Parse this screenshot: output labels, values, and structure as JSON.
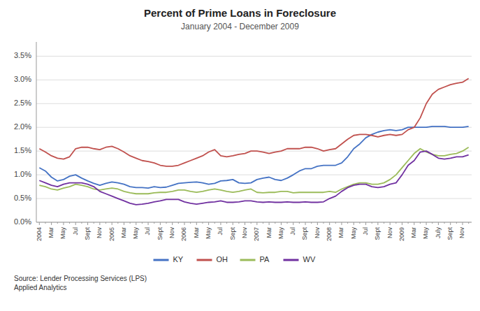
{
  "chart_data": {
    "type": "line",
    "title": "Percent of Prime Loans in Foreclosure",
    "subtitle": "January 2004 - December 2009",
    "annotations": [
      "Source: Lender Processing Services (LPS)\nApplied Analytics"
    ],
    "categories": [
      "2004",
      null,
      "Mar",
      null,
      "May",
      null,
      "Jul",
      null,
      "Sept",
      null,
      "Nov",
      null,
      "2005",
      null,
      "Mar",
      null,
      "May",
      null,
      "Jul",
      null,
      "Sept",
      null,
      "Nov",
      null,
      "2006",
      null,
      "Mar",
      null,
      "May",
      null,
      "Jul",
      null,
      "Sept",
      null,
      "Nov",
      null,
      "2007",
      null,
      "Mar",
      null,
      "May",
      null,
      "Jul",
      null,
      "Sept",
      null,
      "Nov",
      null,
      "2008",
      null,
      "Mar",
      null,
      "May",
      null,
      "Jul",
      null,
      "Sept",
      null,
      "Nov",
      null,
      "2009",
      null,
      "Mar",
      null,
      "May",
      null,
      "July",
      null,
      "Sept",
      null,
      "Nov",
      null
    ],
    "series": [
      {
        "name": "KY",
        "color": "#4472C4",
        "values": [
          0.0115,
          0.0108,
          0.0095,
          0.0087,
          0.009,
          0.0097,
          0.01,
          0.0093,
          0.0087,
          0.0082,
          0.0078,
          0.0082,
          0.0085,
          0.0083,
          0.008,
          0.0075,
          0.0073,
          0.0073,
          0.0072,
          0.0075,
          0.0073,
          0.0074,
          0.0078,
          0.0082,
          0.0083,
          0.0084,
          0.0085,
          0.0083,
          0.008,
          0.0082,
          0.0087,
          0.0088,
          0.009,
          0.0083,
          0.0082,
          0.0083,
          0.009,
          0.0093,
          0.0095,
          0.009,
          0.0088,
          0.0093,
          0.01,
          0.0108,
          0.0113,
          0.0113,
          0.0118,
          0.012,
          0.012,
          0.012,
          0.0125,
          0.0138,
          0.0155,
          0.0165,
          0.0178,
          0.0185,
          0.019,
          0.0193,
          0.0195,
          0.0193,
          0.0195,
          0.02,
          0.02,
          0.02,
          0.02,
          0.0202,
          0.0202,
          0.0202,
          0.02,
          0.02,
          0.02,
          0.0202
        ]
      },
      {
        "name": "OH",
        "color": "#C0504D",
        "values": [
          0.0155,
          0.0148,
          0.014,
          0.0135,
          0.0133,
          0.0138,
          0.0155,
          0.0158,
          0.0158,
          0.0155,
          0.0153,
          0.0158,
          0.016,
          0.0155,
          0.0148,
          0.014,
          0.0135,
          0.013,
          0.0128,
          0.0125,
          0.012,
          0.0118,
          0.0118,
          0.012,
          0.0125,
          0.013,
          0.0135,
          0.014,
          0.0148,
          0.0153,
          0.014,
          0.0138,
          0.014,
          0.0143,
          0.0145,
          0.015,
          0.015,
          0.0148,
          0.0145,
          0.0148,
          0.015,
          0.0155,
          0.0155,
          0.0155,
          0.0158,
          0.0158,
          0.0155,
          0.015,
          0.0153,
          0.0155,
          0.0165,
          0.0175,
          0.0183,
          0.0185,
          0.0185,
          0.0183,
          0.018,
          0.0183,
          0.0185,
          0.0183,
          0.0185,
          0.0195,
          0.02,
          0.022,
          0.025,
          0.027,
          0.028,
          0.0285,
          0.029,
          0.0293,
          0.0295,
          0.0303
        ]
      },
      {
        "name": "PA",
        "color": "#9BBB59",
        "values": [
          0.0078,
          0.0075,
          0.007,
          0.0068,
          0.0072,
          0.0075,
          0.008,
          0.0078,
          0.0075,
          0.007,
          0.0068,
          0.007,
          0.0072,
          0.007,
          0.0065,
          0.0062,
          0.006,
          0.006,
          0.006,
          0.0062,
          0.0063,
          0.0063,
          0.0065,
          0.0068,
          0.0068,
          0.0065,
          0.0063,
          0.0065,
          0.0068,
          0.007,
          0.0068,
          0.0065,
          0.0063,
          0.0065,
          0.0068,
          0.007,
          0.0063,
          0.0062,
          0.0063,
          0.0063,
          0.0065,
          0.0065,
          0.0062,
          0.0063,
          0.0063,
          0.0063,
          0.0063,
          0.0063,
          0.0065,
          0.0063,
          0.007,
          0.0075,
          0.008,
          0.0083,
          0.0083,
          0.008,
          0.008,
          0.0083,
          0.009,
          0.01,
          0.0115,
          0.013,
          0.0145,
          0.0155,
          0.0148,
          0.0143,
          0.014,
          0.014,
          0.0143,
          0.0145,
          0.015,
          0.0158
        ]
      },
      {
        "name": "WV",
        "color": "#7030A0",
        "values": [
          0.0088,
          0.0083,
          0.0078,
          0.0075,
          0.008,
          0.0083,
          0.0083,
          0.0083,
          0.008,
          0.0075,
          0.0065,
          0.006,
          0.0055,
          0.005,
          0.0045,
          0.004,
          0.0037,
          0.0038,
          0.004,
          0.0043,
          0.0045,
          0.0048,
          0.0048,
          0.0048,
          0.0043,
          0.004,
          0.0038,
          0.004,
          0.0042,
          0.0043,
          0.0045,
          0.0042,
          0.0042,
          0.0043,
          0.0045,
          0.0045,
          0.0043,
          0.0042,
          0.0043,
          0.0042,
          0.0042,
          0.0043,
          0.0042,
          0.0042,
          0.0043,
          0.0042,
          0.0042,
          0.0043,
          0.005,
          0.0055,
          0.0065,
          0.0073,
          0.0078,
          0.008,
          0.008,
          0.0075,
          0.0073,
          0.0075,
          0.008,
          0.0083,
          0.01,
          0.012,
          0.013,
          0.0148,
          0.015,
          0.0143,
          0.0135,
          0.0133,
          0.0135,
          0.0138,
          0.0138,
          0.0142
        ]
      }
    ],
    "ylim": [
      0.0,
      0.038
    ],
    "yticks": [
      {
        "value": 0.0,
        "label": "0.0%"
      },
      {
        "value": 0.005,
        "label": "0.5%"
      },
      {
        "value": 0.01,
        "label": "1.0%"
      },
      {
        "value": 0.015,
        "label": "1.5%"
      },
      {
        "value": 0.02,
        "label": "2.0%"
      },
      {
        "value": 0.025,
        "label": "2.5%"
      },
      {
        "value": 0.03,
        "label": "3.0%"
      },
      {
        "value": 0.035,
        "label": "3.5%"
      }
    ],
    "grid": true,
    "legend": "bottom"
  }
}
